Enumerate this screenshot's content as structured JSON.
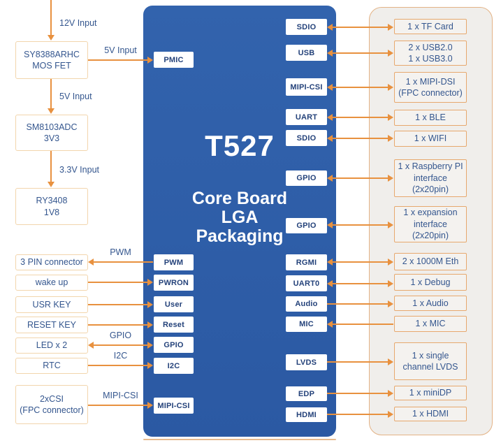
{
  "colors": {
    "soc_blue": "#2E5EA9",
    "arrow_orange": "#E8913F",
    "box_text_navy": "#34568E",
    "port_text_navy": "#24427A",
    "panel_bg": "#F0EEEB",
    "panel_border": "#E3B285",
    "left_box_border": "#F2D5AC",
    "peripheral_box_border": "#E7A86D"
  },
  "soc": {
    "chip_name": "T527",
    "package_label": [
      "Core Board",
      "LGA",
      "Packaging"
    ],
    "left_ports": [
      "PMIC",
      "PWM",
      "PWRON",
      "User",
      "Reset",
      "GPIO",
      "I2C",
      "MIPI-CSI"
    ],
    "right_ports": [
      "SDIO",
      "USB",
      "MIPI-CSI",
      "UART",
      "SDIO",
      "GPIO",
      "GPIO",
      "RGMI",
      "UART0",
      "Audio",
      "MIC",
      "LVDS",
      "EDP",
      "HDMI"
    ]
  },
  "power_chain": {
    "flow_labels": [
      "12V Input",
      "5V Input",
      "3.3V Input"
    ],
    "boxes": [
      [
        "SY8388ARHC",
        "MOS FET"
      ],
      [
        "SM8103ADC",
        "3V3"
      ],
      [
        "RY3408",
        "1V8"
      ]
    ],
    "pmic_feed_label": "5V Input"
  },
  "left_peripherals": [
    [
      "3 PIN connector"
    ],
    [
      "wake up"
    ],
    [
      "USR KEY"
    ],
    [
      "RESET KEY"
    ],
    [
      "LED x 2"
    ],
    [
      "RTC"
    ],
    [
      "2xCSI",
      "(FPC connector)"
    ]
  ],
  "left_connections": [
    {
      "bus": "PWM",
      "direction": "soc-to-peripheral"
    },
    {
      "bus": "",
      "direction": "peripheral-to-soc"
    },
    {
      "bus": "",
      "direction": "peripheral-to-soc"
    },
    {
      "bus": "",
      "direction": "peripheral-to-soc"
    },
    {
      "bus": "GPIO",
      "direction": "bidirectional"
    },
    {
      "bus": "I2C",
      "direction": "peripheral-to-soc"
    },
    {
      "bus": "MIPI-CSI",
      "direction": "peripheral-to-soc"
    }
  ],
  "right_peripherals": [
    [
      "1 x TF Card"
    ],
    [
      "2 x USB2.0",
      "1 x USB3.0"
    ],
    [
      "1 x MIPI-DSI",
      "(FPC connector)"
    ],
    [
      "1 x BLE"
    ],
    [
      "1 x WIFI"
    ],
    [
      "1 x Raspberry PI",
      "interface",
      "(2x20pin)"
    ],
    [
      "1 x expansion",
      "interface",
      "(2x20pin)"
    ],
    [
      "2 x 1000M Eth"
    ],
    [
      "1 x Debug"
    ],
    [
      "1 x Audio"
    ],
    [
      "1 x MIC"
    ],
    [
      "1 x single",
      "channel LVDS"
    ],
    [
      "1 x miniDP"
    ],
    [
      "1 x HDMI"
    ]
  ],
  "right_connections": [
    {
      "direction": "bidirectional"
    },
    {
      "direction": "bidirectional"
    },
    {
      "direction": "bidirectional"
    },
    {
      "direction": "bidirectional"
    },
    {
      "direction": "bidirectional"
    },
    {
      "direction": "bidirectional"
    },
    {
      "direction": "bidirectional"
    },
    {
      "direction": "bidirectional"
    },
    {
      "direction": "bidirectional"
    },
    {
      "direction": "soc-to-peripheral"
    },
    {
      "direction": "peripheral-to-soc"
    },
    {
      "direction": "soc-to-peripheral"
    },
    {
      "direction": "soc-to-peripheral"
    },
    {
      "direction": "soc-to-peripheral"
    }
  ]
}
